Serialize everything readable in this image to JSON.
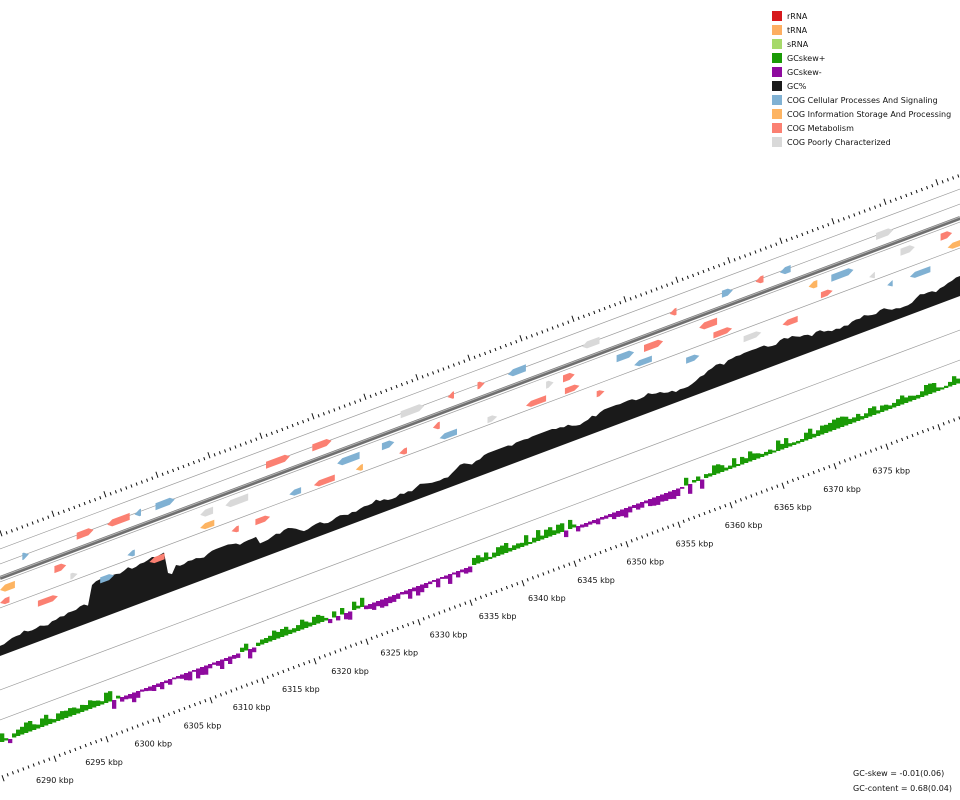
{
  "legend": [
    {
      "label": "rRNA",
      "color": "#d7191c"
    },
    {
      "label": "tRNA",
      "color": "#fdae61"
    },
    {
      "label": "sRNA",
      "color": "#a6d96a"
    },
    {
      "label": "GCskew+",
      "color": "#1a9a06"
    },
    {
      "label": "GCskew-",
      "color": "#8e0a9e"
    },
    {
      "label": "GC%",
      "color": "#1a1a1a"
    },
    {
      "label": "COG Cellular Processes And Signaling",
      "color": "#80b1d3"
    },
    {
      "label": "COG Information Storage And Processing",
      "color": "#fdb462"
    },
    {
      "label": "COG Metabolism",
      "color": "#fb8072"
    },
    {
      "label": "COG Poorly Characterized",
      "color": "#d9d9d9"
    }
  ],
  "scale_labels": [
    "6290 kbp",
    "6295 kbp",
    "6300 kbp",
    "6305 kbp",
    "6310 kbp",
    "6315 kbp",
    "6320 kbp",
    "6325 kbp",
    "6330 kbp",
    "6335 kbp",
    "6340 kbp",
    "6345 kbp",
    "6350 kbp",
    "6355 kbp",
    "6360 kbp",
    "6365 kbp",
    "6370 kbp",
    "6375 kbp"
  ],
  "stats": {
    "gc_skew": "GC-skew = -0.01(0.06)",
    "gc_content": "GC-content = 0.68(0.04)"
  }
}
